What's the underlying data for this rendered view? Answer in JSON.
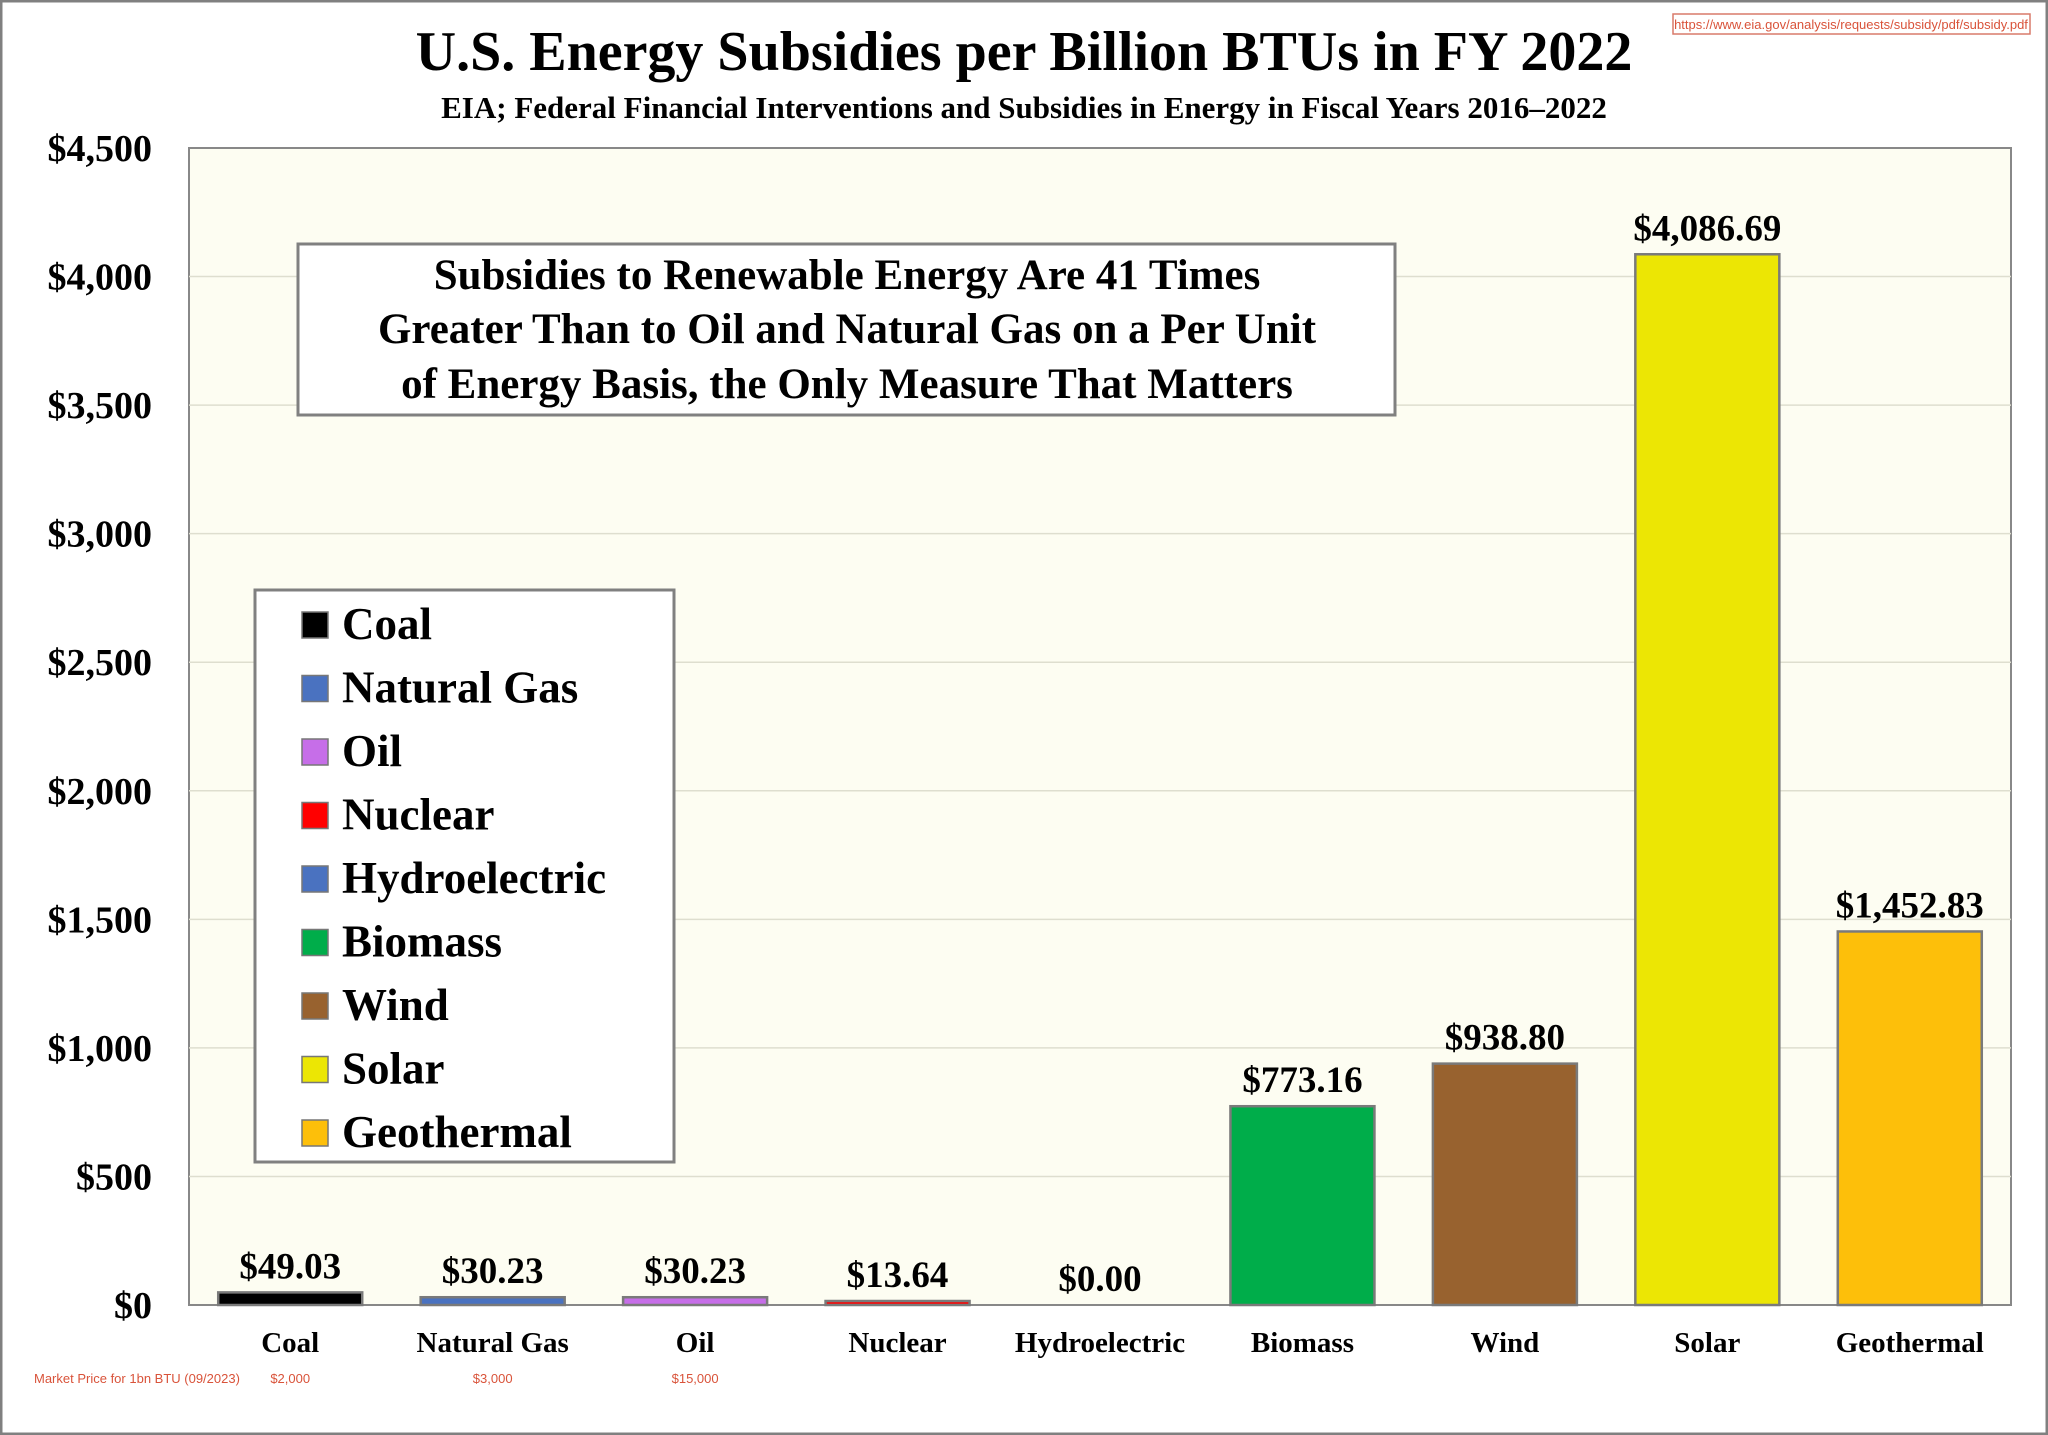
{
  "chart_data": {
    "type": "bar",
    "title": "U.S. Energy Subsidies per Billion BTUs in FY 2022",
    "subtitle": "EIA; Federal Financial Interventions and Subsidies in Energy in Fiscal Years 2016–2022",
    "source_url": "https://www.eia.gov/analysis/requests/subsidy/pdf/subsidy.pdf",
    "xlabel": "",
    "ylabel": "",
    "ylim": [
      0,
      4500
    ],
    "yticks": [
      0,
      500,
      1000,
      1500,
      2000,
      2500,
      3000,
      3500,
      4000,
      4500
    ],
    "ytick_labels": [
      "$0",
      "$500",
      "$1,000",
      "$1,500",
      "$2,000",
      "$2,500",
      "$3,000",
      "$3,500",
      "$4,000",
      "$4,500"
    ],
    "grid": true,
    "categories": [
      "Coal",
      "Natural Gas",
      "Oil",
      "Nuclear",
      "Hydroelectric",
      "Biomass",
      "Wind",
      "Solar",
      "Geothermal"
    ],
    "values": [
      49.03,
      30.23,
      30.23,
      13.64,
      0.0,
      773.16,
      938.8,
      4086.69,
      1452.83
    ],
    "value_labels": [
      "$49.03",
      "$30.23",
      "$30.23",
      "$13.64",
      "$0.00",
      "$773.16",
      "$938.80",
      "$4,086.69",
      "$1,452.83"
    ],
    "colors": [
      "#000000",
      "#4a72c0",
      "#c66ee8",
      "#ff0000",
      "#4a72c0",
      "#00ad4a",
      "#98622f",
      "#ece604",
      "#fdbf0a"
    ],
    "legend": {
      "placement": "left",
      "entries": [
        "Coal",
        "Natural Gas",
        "Oil",
        "Nuclear",
        "Hydroelectric",
        "Biomass",
        "Wind",
        "Solar",
        "Geothermal"
      ]
    },
    "annotation": {
      "lines": [
        "Subsidies to Renewable Energy Are 41 Times",
        "Greater Than to Oil and Natural Gas on a Per Unit",
        "of Energy Basis, the Only Measure That Matters"
      ]
    },
    "market_price": {
      "label": "Market Price for 1bn BTU (09/2023)",
      "values": {
        "Coal": "$2,000",
        "Natural Gas": "$3,000",
        "Oil": "$15,000"
      }
    }
  }
}
